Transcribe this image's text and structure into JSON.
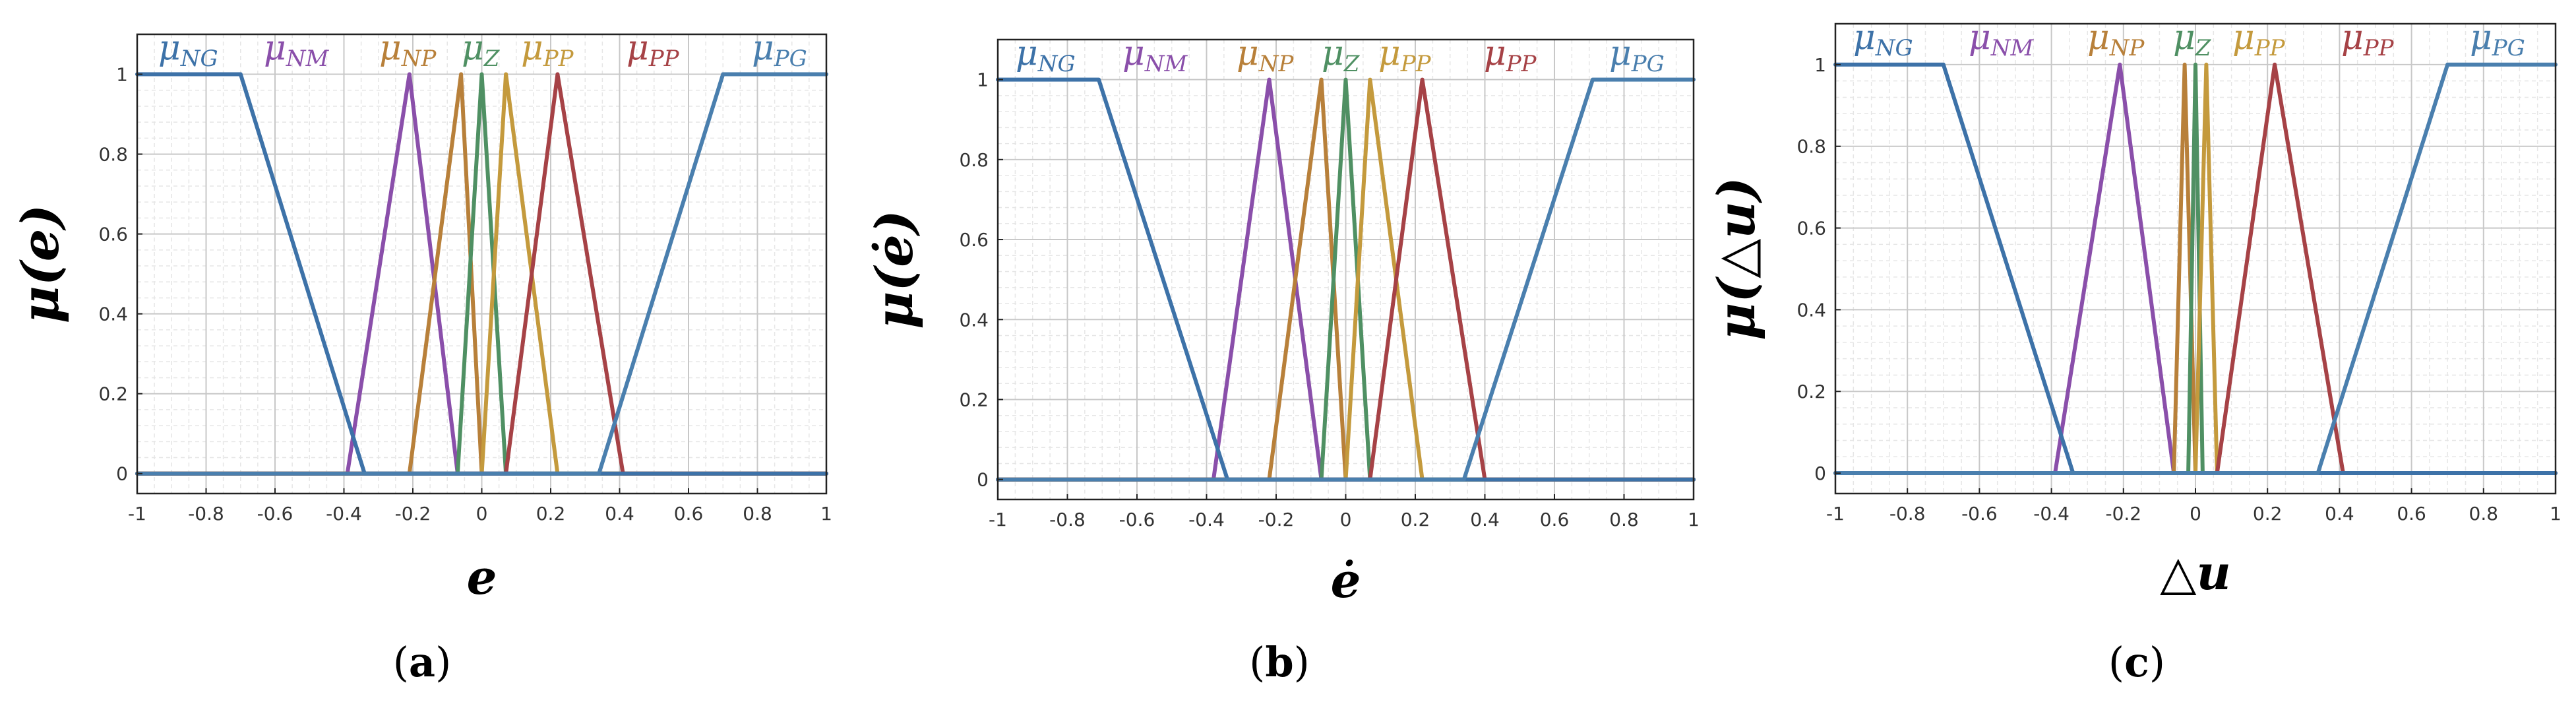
{
  "colors": {
    "NG": "#3d72a8",
    "NM": "#8a4faa",
    "NP": "#b8803a",
    "Z": "#4f9063",
    "PP_gold": "#c49a3d",
    "PP_red": "#a64246",
    "PG": "#4a7fae"
  },
  "chart_data": [
    {
      "type": "line",
      "panel": "a",
      "caption_letter": "a",
      "ylabel": "μ(e)",
      "xlabel": "e",
      "xlim": [
        -1,
        1
      ],
      "ylim": [
        -0.05,
        1.1
      ],
      "xticks": [
        "-1",
        "-0.8",
        "-0.6",
        "-0.4",
        "-0.2",
        "0",
        "0.2",
        "0.4",
        "0.6",
        "0.8",
        "1"
      ],
      "yticks": [
        "0",
        "0.2",
        "0.4",
        "0.6",
        "0.8",
        "1"
      ],
      "grid": true,
      "legend_labels": [
        {
          "main": "μ",
          "sub": "NG",
          "color_key": "NG"
        },
        {
          "main": "μ",
          "sub": "NM",
          "color_key": "NM"
        },
        {
          "main": "μ",
          "sub": "NP",
          "color_key": "NP"
        },
        {
          "main": "μ",
          "sub": "Z",
          "color_key": "Z"
        },
        {
          "main": "μ",
          "sub": "PP",
          "color_key": "PP_gold"
        },
        {
          "main": "μ",
          "sub": "PP",
          "color_key": "PP_red"
        },
        {
          "main": "μ",
          "sub": "PG",
          "color_key": "PG"
        }
      ],
      "series": [
        {
          "color_key": "NM",
          "x": [
            -1,
            -0.39,
            -0.21,
            -0.07,
            1
          ],
          "y": [
            0,
            0,
            1,
            0,
            0
          ]
        },
        {
          "color_key": "NP",
          "x": [
            -1,
            -0.21,
            -0.06,
            0,
            1
          ],
          "y": [
            0,
            0,
            1,
            0,
            0
          ]
        },
        {
          "color_key": "Z",
          "x": [
            -1,
            -0.07,
            0,
            0.07,
            1
          ],
          "y": [
            0,
            0,
            1,
            0,
            0
          ]
        },
        {
          "color_key": "PP_gold",
          "x": [
            -1,
            0,
            0.07,
            0.22,
            1
          ],
          "y": [
            0,
            0,
            1,
            0,
            0
          ]
        },
        {
          "color_key": "PP_red",
          "x": [
            -1,
            0.07,
            0.22,
            0.41,
            1
          ],
          "y": [
            0,
            0,
            1,
            0,
            0
          ]
        },
        {
          "color_key": "NG",
          "x": [
            -1,
            -0.7,
            -0.34,
            1
          ],
          "y": [
            1,
            1,
            0,
            0
          ]
        },
        {
          "color_key": "PG",
          "x": [
            -1,
            0.34,
            0.7,
            1
          ],
          "y": [
            0,
            0,
            1,
            1
          ]
        }
      ]
    },
    {
      "type": "line",
      "panel": "b",
      "caption_letter": "b",
      "ylabel": "μ(ė)",
      "xlabel": "ė",
      "xlim": [
        -1,
        1
      ],
      "ylim": [
        -0.05,
        1.1
      ],
      "xticks": [
        "-1",
        "-0.8",
        "-0.6",
        "-0.4",
        "-0.2",
        "0",
        "0.2",
        "0.4",
        "0.6",
        "0.8",
        "1"
      ],
      "yticks": [
        "0",
        "0.2",
        "0.4",
        "0.6",
        "0.8",
        "1"
      ],
      "grid": true,
      "legend_labels": [
        {
          "main": "μ",
          "sub": "NG",
          "color_key": "NG"
        },
        {
          "main": "μ",
          "sub": "NM",
          "color_key": "NM"
        },
        {
          "main": "μ",
          "sub": "NP",
          "color_key": "NP"
        },
        {
          "main": "μ",
          "sub": "Z",
          "color_key": "Z"
        },
        {
          "main": "μ",
          "sub": "PP",
          "color_key": "PP_gold"
        },
        {
          "main": "μ",
          "sub": "PP",
          "color_key": "PP_red"
        },
        {
          "main": "μ",
          "sub": "PG",
          "color_key": "PG"
        }
      ],
      "series": [
        {
          "color_key": "NM",
          "x": [
            -1,
            -0.38,
            -0.22,
            -0.07,
            1
          ],
          "y": [
            0,
            0,
            1,
            0,
            0
          ]
        },
        {
          "color_key": "NP",
          "x": [
            -1,
            -0.22,
            -0.07,
            0,
            1
          ],
          "y": [
            0,
            0,
            1,
            0,
            0
          ]
        },
        {
          "color_key": "Z",
          "x": [
            -1,
            -0.07,
            0,
            0.07,
            1
          ],
          "y": [
            0,
            0,
            1,
            0,
            0
          ]
        },
        {
          "color_key": "PP_gold",
          "x": [
            -1,
            0,
            0.07,
            0.22,
            1
          ],
          "y": [
            0,
            0,
            1,
            0,
            0
          ]
        },
        {
          "color_key": "PP_red",
          "x": [
            -1,
            0.07,
            0.22,
            0.4,
            1
          ],
          "y": [
            0,
            0,
            1,
            0,
            0
          ]
        },
        {
          "color_key": "NG",
          "x": [
            -1,
            -0.71,
            -0.34,
            1
          ],
          "y": [
            1,
            1,
            0,
            0
          ]
        },
        {
          "color_key": "PG",
          "x": [
            -1,
            0.34,
            0.71,
            1
          ],
          "y": [
            0,
            0,
            1,
            1
          ]
        }
      ]
    },
    {
      "type": "line",
      "panel": "c",
      "caption_letter": "c",
      "ylabel": "μ(△u)",
      "xlabel": "△u",
      "xlim": [
        -1,
        1
      ],
      "ylim": [
        -0.05,
        1.1
      ],
      "xticks": [
        "-1",
        "-0.8",
        "-0.6",
        "-0.4",
        "-0.2",
        "0",
        "0.2",
        "0.4",
        "0.6",
        "0.8",
        "1"
      ],
      "yticks": [
        "0",
        "0.2",
        "0.4",
        "0.6",
        "0.8",
        "1"
      ],
      "grid": true,
      "legend_labels": [
        {
          "main": "μ",
          "sub": "NG",
          "color_key": "NG"
        },
        {
          "main": "μ",
          "sub": "NM",
          "color_key": "NM"
        },
        {
          "main": "μ",
          "sub": "NP",
          "color_key": "NP"
        },
        {
          "main": "μ",
          "sub": "Z",
          "color_key": "Z"
        },
        {
          "main": "μ",
          "sub": "PP",
          "color_key": "PP_gold"
        },
        {
          "main": "μ",
          "sub": "PP",
          "color_key": "PP_red"
        },
        {
          "main": "μ",
          "sub": "PG",
          "color_key": "PG"
        }
      ],
      "series": [
        {
          "color_key": "NM",
          "x": [
            -1,
            -0.39,
            -0.21,
            -0.06,
            1
          ],
          "y": [
            0,
            0,
            1,
            0,
            0
          ]
        },
        {
          "color_key": "NP",
          "x": [
            -1,
            -0.06,
            -0.03,
            0,
            1
          ],
          "y": [
            0,
            0,
            1,
            0,
            0
          ]
        },
        {
          "color_key": "Z",
          "x": [
            -1,
            -0.02,
            0,
            0.02,
            1
          ],
          "y": [
            0,
            0,
            1,
            0,
            0
          ]
        },
        {
          "color_key": "PP_gold",
          "x": [
            -1,
            0,
            0.03,
            0.06,
            1
          ],
          "y": [
            0,
            0,
            1,
            0,
            0
          ]
        },
        {
          "color_key": "PP_red",
          "x": [
            -1,
            0.06,
            0.22,
            0.41,
            1
          ],
          "y": [
            0,
            0,
            1,
            0,
            0
          ]
        },
        {
          "color_key": "NG",
          "x": [
            -1,
            -0.7,
            -0.34,
            1
          ],
          "y": [
            1,
            1,
            0,
            0
          ]
        },
        {
          "color_key": "PG",
          "x": [
            -1,
            0.34,
            0.7,
            1
          ],
          "y": [
            0,
            0,
            1,
            1
          ]
        }
      ]
    }
  ]
}
